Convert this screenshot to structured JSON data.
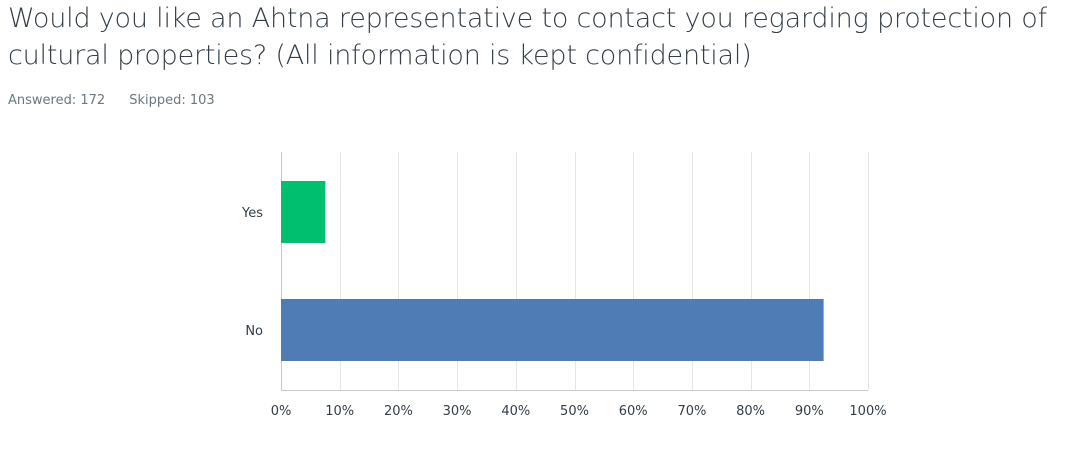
{
  "question": {
    "title": "Would you like an Ahtna representative to contact you regarding protection of cultural properties? (All information is kept confidential)"
  },
  "stats": {
    "answered_label": "Answered:",
    "answered_count": "172",
    "skipped_label": "Skipped:",
    "skipped_count": "103"
  },
  "colors": {
    "yes_bar": "#00bf6f",
    "no_bar": "#507cb6",
    "grid": "#e6e6e6",
    "axis": "#c8c8c8"
  },
  "chart_data": {
    "type": "bar",
    "orientation": "horizontal",
    "categories": [
      "Yes",
      "No"
    ],
    "values": [
      7.56,
      92.44
    ],
    "xlim": [
      0,
      100
    ],
    "x_ticks": [
      "0%",
      "10%",
      "20%",
      "30%",
      "40%",
      "50%",
      "60%",
      "70%",
      "80%",
      "90%",
      "100%"
    ],
    "grid": true,
    "bar_colors": [
      "#00bf6f",
      "#507cb6"
    ]
  }
}
